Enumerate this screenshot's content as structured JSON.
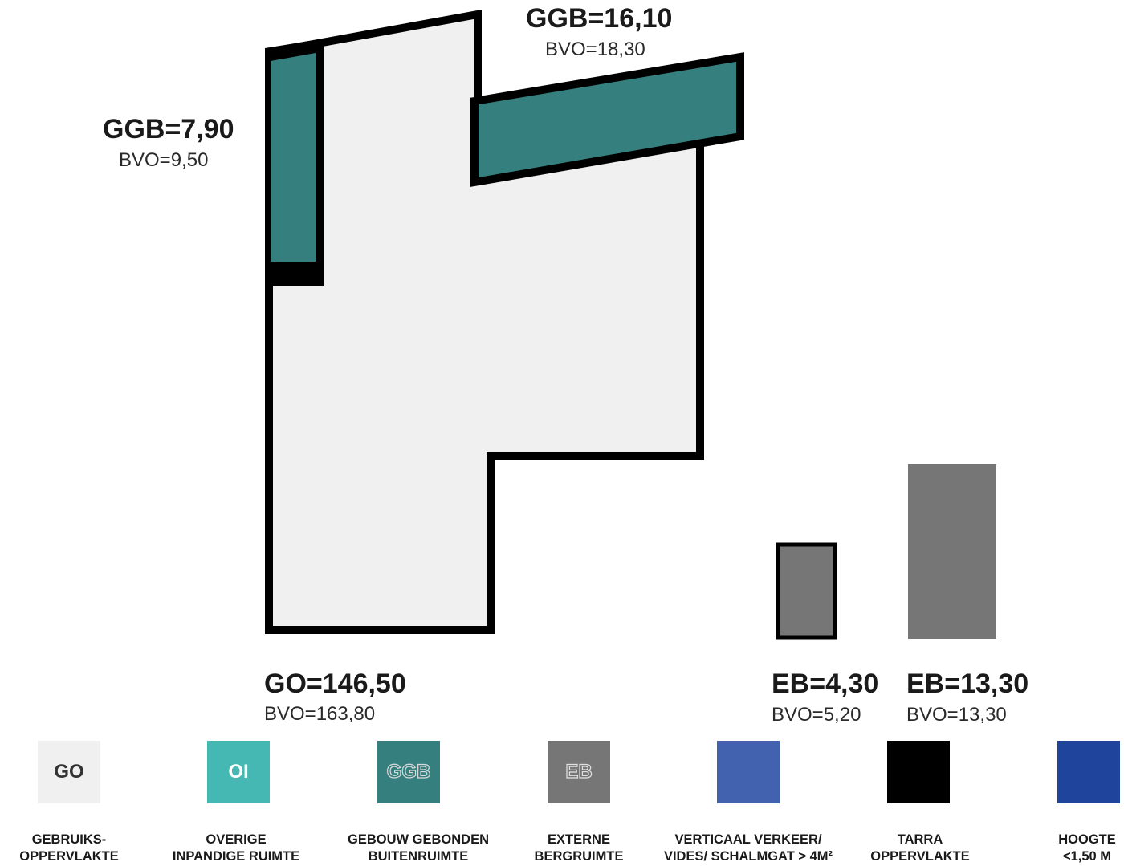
{
  "colors": {
    "go": "#f0f0f0",
    "oi": "#46b8b4",
    "ggb": "#357f7f",
    "eb": "#767676",
    "verkeer": "#4262b0",
    "tarra": "#000000",
    "hoogte": "#1f449c",
    "outline": "#000000"
  },
  "labels": {
    "ggb_left": {
      "main": "GGB=7,90",
      "sub": "BVO=9,50"
    },
    "ggb_top": {
      "main": "GGB=16,10",
      "sub": "BVO=18,30"
    },
    "go_main": {
      "main": "GO=146,50",
      "sub": "BVO=163,80"
    },
    "eb_small": {
      "main": "EB=4,30",
      "sub": "BVO=5,20"
    },
    "eb_large": {
      "main": "EB=13,30",
      "sub": "BVO=13,30"
    }
  },
  "legend": [
    {
      "key": "go",
      "code": "GO",
      "line1": "GEBRUIKS-",
      "line2": "OPPERVLAKTE"
    },
    {
      "key": "oi",
      "code": "OI",
      "line1": "OVERIGE",
      "line2": "INPANDIGE RUIMTE"
    },
    {
      "key": "ggb",
      "code": "GGB",
      "line1": "GEBOUW GEBONDEN",
      "line2": "BUITENRUIMTE"
    },
    {
      "key": "eb",
      "code": "EB",
      "line1": "EXTERNE",
      "line2": "BERGRUIMTE"
    },
    {
      "key": "verkeer",
      "code": "",
      "line1": "VERTICAAL VERKEER/",
      "line2": "VIDES/ SCHALMGAT > 4M²"
    },
    {
      "key": "tarra",
      "code": "",
      "line1": "TARRA",
      "line2": "OPPERVLAKTE"
    },
    {
      "key": "hoogte",
      "code": "",
      "line1": "HOOGTE",
      "line2": "<1,50 M"
    }
  ]
}
